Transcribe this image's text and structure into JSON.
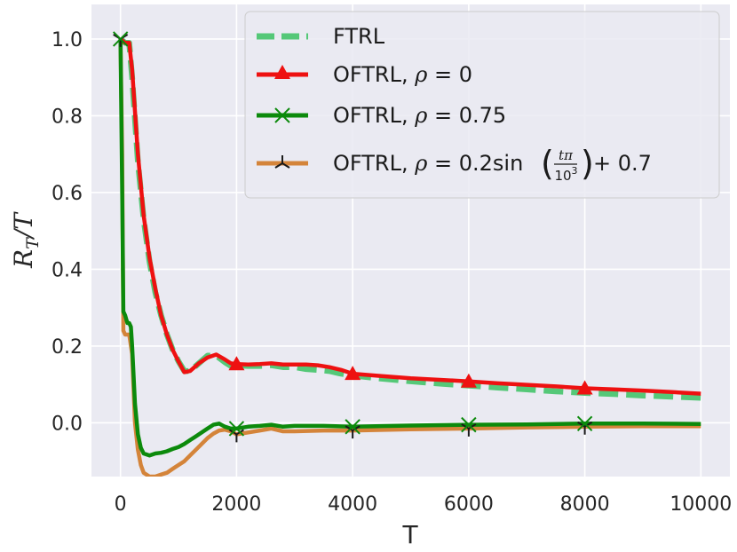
{
  "chart_data": {
    "type": "line",
    "title": "",
    "xlabel": "T",
    "ylabel_parts": {
      "main": "R",
      "sub": "T",
      "tail": "/T"
    },
    "xlim": [
      -500,
      10500
    ],
    "ylim": [
      -0.14,
      1.09
    ],
    "xticks": [
      0,
      2000,
      4000,
      6000,
      8000,
      10000
    ],
    "xtick_labels": [
      "0",
      "2000",
      "4000",
      "6000",
      "8000",
      "10000"
    ],
    "yticks": [
      0.0,
      0.2,
      0.4,
      0.6,
      0.8,
      1.0
    ],
    "ytick_labels": [
      "0.0",
      "0.2",
      "0.4",
      "0.6",
      "0.8",
      "1.0"
    ],
    "grid": true,
    "legend_position": "top-right",
    "series": [
      {
        "name": "FTRL",
        "legend_text": "FTRL",
        "color": "#55c878",
        "dashed": true,
        "marker": "none",
        "x": [
          0,
          80,
          150,
          200,
          300,
          400,
          500,
          600,
          700,
          800,
          900,
          1000,
          1100,
          1200,
          1350,
          1500,
          1650,
          1800,
          1900,
          2000,
          2200,
          2400,
          2600,
          2800,
          3000,
          3200,
          3400,
          3600,
          3800,
          4000,
          4500,
          5000,
          5500,
          6000,
          6500,
          7000,
          7500,
          8000,
          8500,
          9000,
          9500,
          10000
        ],
        "y": [
          1.0,
          0.99,
          0.99,
          0.9,
          0.68,
          0.53,
          0.42,
          0.34,
          0.28,
          0.23,
          0.19,
          0.16,
          0.135,
          0.135,
          0.155,
          0.175,
          0.175,
          0.158,
          0.148,
          0.15,
          0.148,
          0.148,
          0.15,
          0.145,
          0.145,
          0.14,
          0.138,
          0.135,
          0.128,
          0.123,
          0.115,
          0.108,
          0.102,
          0.097,
          0.092,
          0.087,
          0.082,
          0.078,
          0.075,
          0.071,
          0.068,
          0.065
        ]
      },
      {
        "name": "OFTRL, ρ = 0",
        "legend_text": [
          "OFTRL, ",
          "ρ",
          " = 0"
        ],
        "color": "#ee1111",
        "dashed": false,
        "marker": "triangle",
        "marker_x": [
          2000,
          4000,
          6000,
          8000
        ],
        "marker_y": [
          0.153,
          0.128,
          0.108,
          0.09
        ],
        "x": [
          0,
          80,
          150,
          200,
          300,
          400,
          500,
          600,
          700,
          800,
          900,
          1000,
          1100,
          1200,
          1350,
          1500,
          1650,
          1800,
          1900,
          2000,
          2200,
          2400,
          2600,
          2800,
          3000,
          3200,
          3400,
          3600,
          3800,
          4000,
          4500,
          5000,
          5500,
          6000,
          6500,
          7000,
          7500,
          8000,
          8500,
          9000,
          9500,
          10000
        ],
        "y": [
          1.0,
          0.99,
          0.99,
          0.92,
          0.7,
          0.54,
          0.43,
          0.35,
          0.28,
          0.23,
          0.19,
          0.16,
          0.132,
          0.135,
          0.155,
          0.17,
          0.178,
          0.165,
          0.155,
          0.153,
          0.152,
          0.153,
          0.155,
          0.152,
          0.152,
          0.152,
          0.15,
          0.145,
          0.138,
          0.128,
          0.122,
          0.116,
          0.112,
          0.108,
          0.103,
          0.099,
          0.095,
          0.09,
          0.087,
          0.084,
          0.08,
          0.076
        ]
      },
      {
        "name": "OFTRL, ρ = 0.75",
        "legend_text": [
          "OFTRL, ",
          "ρ",
          " = 0.75"
        ],
        "color": "#0c8a0c",
        "dashed": false,
        "marker": "x",
        "marker_x": [
          0,
          2000,
          4000,
          6000,
          8000
        ],
        "marker_y": [
          1.0,
          -0.015,
          -0.01,
          -0.005,
          -0.002
        ],
        "x": [
          0,
          30,
          50,
          80,
          100,
          120,
          150,
          180,
          200,
          250,
          300,
          350,
          400,
          500,
          600,
          700,
          800,
          900,
          1000,
          1100,
          1200,
          1300,
          1400,
          1500,
          1600,
          1700,
          1800,
          1900,
          2000,
          2200,
          2400,
          2600,
          2800,
          3000,
          3500,
          4000,
          5000,
          6000,
          7000,
          8000,
          9000,
          10000
        ],
        "y": [
          1.0,
          0.6,
          0.29,
          0.28,
          0.27,
          0.26,
          0.26,
          0.25,
          0.2,
          0.05,
          -0.03,
          -0.065,
          -0.08,
          -0.085,
          -0.08,
          -0.078,
          -0.074,
          -0.068,
          -0.063,
          -0.055,
          -0.045,
          -0.035,
          -0.025,
          -0.015,
          -0.005,
          -0.002,
          -0.01,
          -0.015,
          -0.015,
          -0.01,
          -0.008,
          -0.005,
          -0.01,
          -0.008,
          -0.008,
          -0.01,
          -0.007,
          -0.005,
          -0.004,
          -0.002,
          -0.002,
          -0.003
        ]
      },
      {
        "name": "OFTRL, ρ = 0.2sin(tπ/10^3) + 0.7",
        "legend_text": [
          "OFTRL, ",
          "ρ",
          " = 0.2sin",
          "tπ",
          "10",
          "3",
          " + 0.7"
        ],
        "color": "#d4843a",
        "dashed": false,
        "marker": "tri",
        "marker_x": [
          0,
          2000,
          4000,
          6000,
          8000
        ],
        "marker_y": [
          1.0,
          -0.03,
          -0.02,
          -0.015,
          -0.01
        ],
        "x": [
          0,
          30,
          50,
          80,
          100,
          150,
          200,
          250,
          300,
          350,
          400,
          500,
          600,
          700,
          800,
          900,
          1000,
          1100,
          1200,
          1300,
          1400,
          1500,
          1600,
          1700,
          1800,
          1900,
          2000,
          2200,
          2400,
          2600,
          2800,
          3000,
          3500,
          4000,
          5000,
          6000,
          7000,
          8000,
          9000,
          10000
        ],
        "y": [
          1.0,
          0.7,
          0.24,
          0.23,
          0.23,
          0.23,
          0.18,
          0.0,
          -0.07,
          -0.11,
          -0.13,
          -0.14,
          -0.14,
          -0.135,
          -0.13,
          -0.12,
          -0.11,
          -0.1,
          -0.085,
          -0.07,
          -0.055,
          -0.04,
          -0.028,
          -0.02,
          -0.018,
          -0.022,
          -0.03,
          -0.025,
          -0.02,
          -0.015,
          -0.022,
          -0.022,
          -0.02,
          -0.02,
          -0.017,
          -0.015,
          -0.012,
          -0.01,
          -0.009,
          -0.009
        ]
      }
    ]
  }
}
